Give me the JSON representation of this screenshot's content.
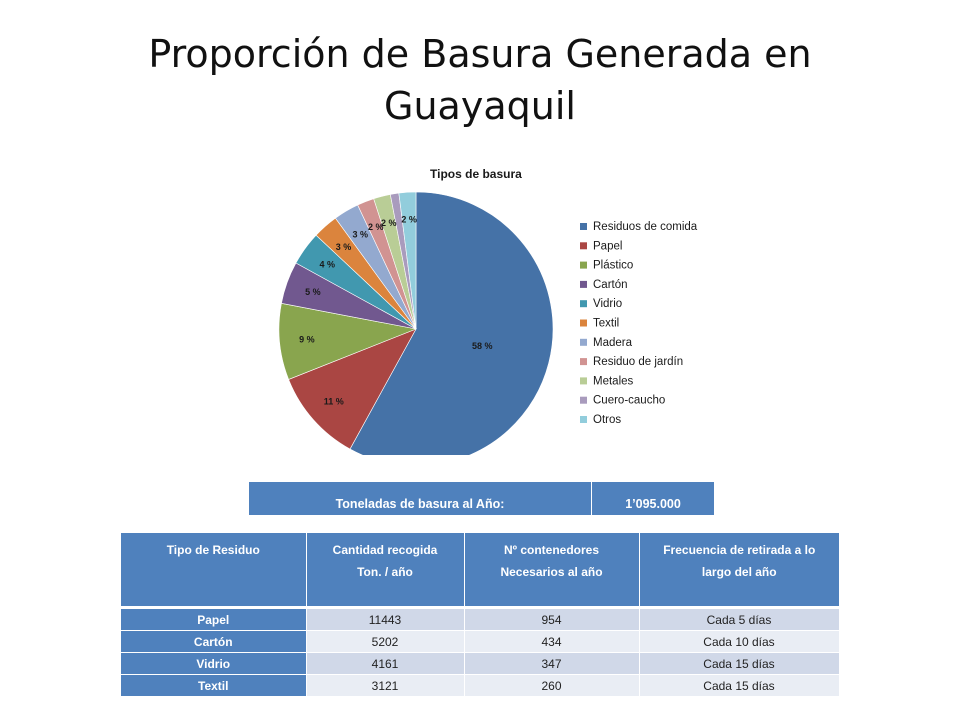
{
  "page": {
    "title_line1": "Proporción de Basura Generada en",
    "title_line2": "Guayaquil"
  },
  "chart_data": {
    "type": "pie",
    "title": "Tipos de basura",
    "legend_position": "right",
    "slices": [
      {
        "name": "Residuos de comida",
        "value": 58,
        "label": "58 %",
        "color": "#4572a7"
      },
      {
        "name": "Papel",
        "value": 11,
        "label": "11 %",
        "color": "#aa4643"
      },
      {
        "name": "Plástico",
        "value": 9,
        "label": "9 %",
        "color": "#89a54e"
      },
      {
        "name": "Cartón",
        "value": 5,
        "label": "5 %",
        "color": "#71588f"
      },
      {
        "name": "Vidrio",
        "value": 4,
        "label": "4 %",
        "color": "#4198af"
      },
      {
        "name": "Textil",
        "value": 3,
        "label": "3 %",
        "color": "#db843d"
      },
      {
        "name": "Madera",
        "value": 3,
        "label": "3 %",
        "color": "#93a9cf"
      },
      {
        "name": "Residuo de jardín",
        "value": 2,
        "label": "2 %",
        "color": "#d19392"
      },
      {
        "name": "Metales",
        "value": 2,
        "label": "2 %",
        "color": "#b9cd96"
      },
      {
        "name": "Cuero-caucho",
        "value": 1,
        "label": "",
        "color": "#a99bbd"
      },
      {
        "name": "Otros",
        "value": 2,
        "label": "2 %",
        "color": "#92cddc"
      }
    ]
  },
  "total": {
    "label": "Toneladas de basura al Año:",
    "value": "1’095.000"
  },
  "table": {
    "headers": [
      [
        "Tipo de Residuo"
      ],
      [
        "Cantidad recogida",
        "Ton. / año"
      ],
      [
        "Nº contenedores",
        "Necesarios al año"
      ],
      [
        "Frecuencia de retirada a lo",
        "largo del año"
      ]
    ],
    "rows": [
      [
        "Papel",
        "11443",
        "954",
        "Cada 5 días"
      ],
      [
        "Cartón",
        "5202",
        "434",
        "Cada 10 días"
      ],
      [
        "Vidrio",
        "4161",
        "347",
        "Cada 15 días"
      ],
      [
        "Textil",
        "3121",
        "260",
        "Cada 15 días"
      ]
    ]
  }
}
